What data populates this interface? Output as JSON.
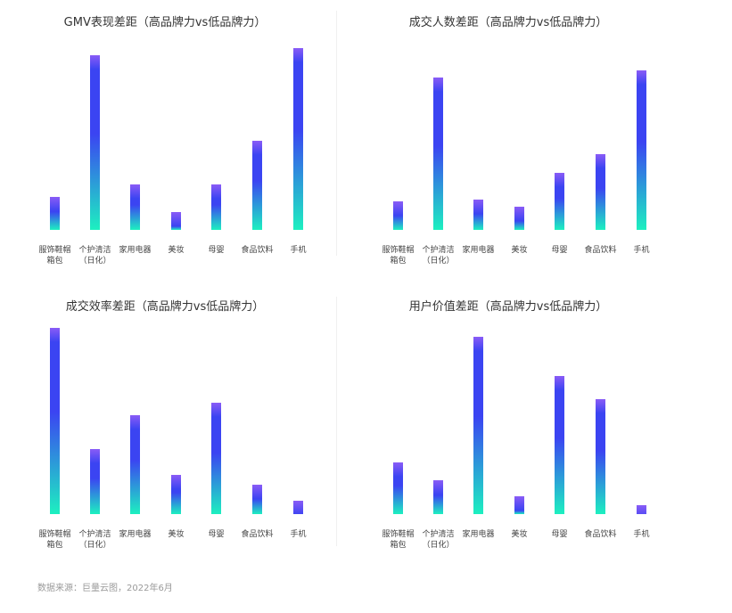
{
  "colors": {
    "bar_top": "#8a5cf6",
    "bar_mid": "#3b44f2",
    "bar_bottom": "#1df0c0"
  },
  "chart_data": [
    {
      "type": "bar",
      "title": "GMV表现差距（高品牌力vs低品牌力）",
      "categories": [
        "服饰鞋帽箱包",
        "个护清洁（日化）",
        "家用电器",
        "美妆",
        "母婴",
        "食品饮料",
        "手机"
      ],
      "values": [
        19,
        100,
        26,
        10,
        26,
        51,
        104
      ],
      "ylim": [
        0,
        104
      ]
    },
    {
      "type": "bar",
      "title": "成交人数差距（高品牌力vs低品牌力）",
      "categories": [
        "服饰鞋帽箱包",
        "个护清洁（日化）",
        "家用电器",
        "美妆",
        "母婴",
        "食品饮料",
        "手机"
      ],
      "values": [
        17,
        91,
        18,
        14,
        34,
        45,
        95
      ],
      "ylim": [
        0,
        95
      ]
    },
    {
      "type": "bar",
      "title": "成交效率差距（高品牌力vs低品牌力）",
      "categories": [
        "服饰鞋帽箱包",
        "个护清洁（日化）",
        "家用电器",
        "美妆",
        "母婴",
        "食品饮料",
        "手机"
      ],
      "values": [
        100,
        35,
        53,
        21,
        60,
        16,
        7
      ],
      "ylim": [
        0,
        100
      ]
    },
    {
      "type": "bar",
      "title": "用户价值差距（高品牌力vs低品牌力）",
      "categories": [
        "服饰鞋帽箱包",
        "个护清洁（日化）",
        "家用电器",
        "美妆",
        "母婴",
        "食品饮料",
        "手机"
      ],
      "values": [
        29,
        19,
        100,
        10,
        78,
        65,
        5
      ],
      "ylim": [
        0,
        100
      ]
    }
  ],
  "source": "数据来源：巨量云图，2022年6月"
}
